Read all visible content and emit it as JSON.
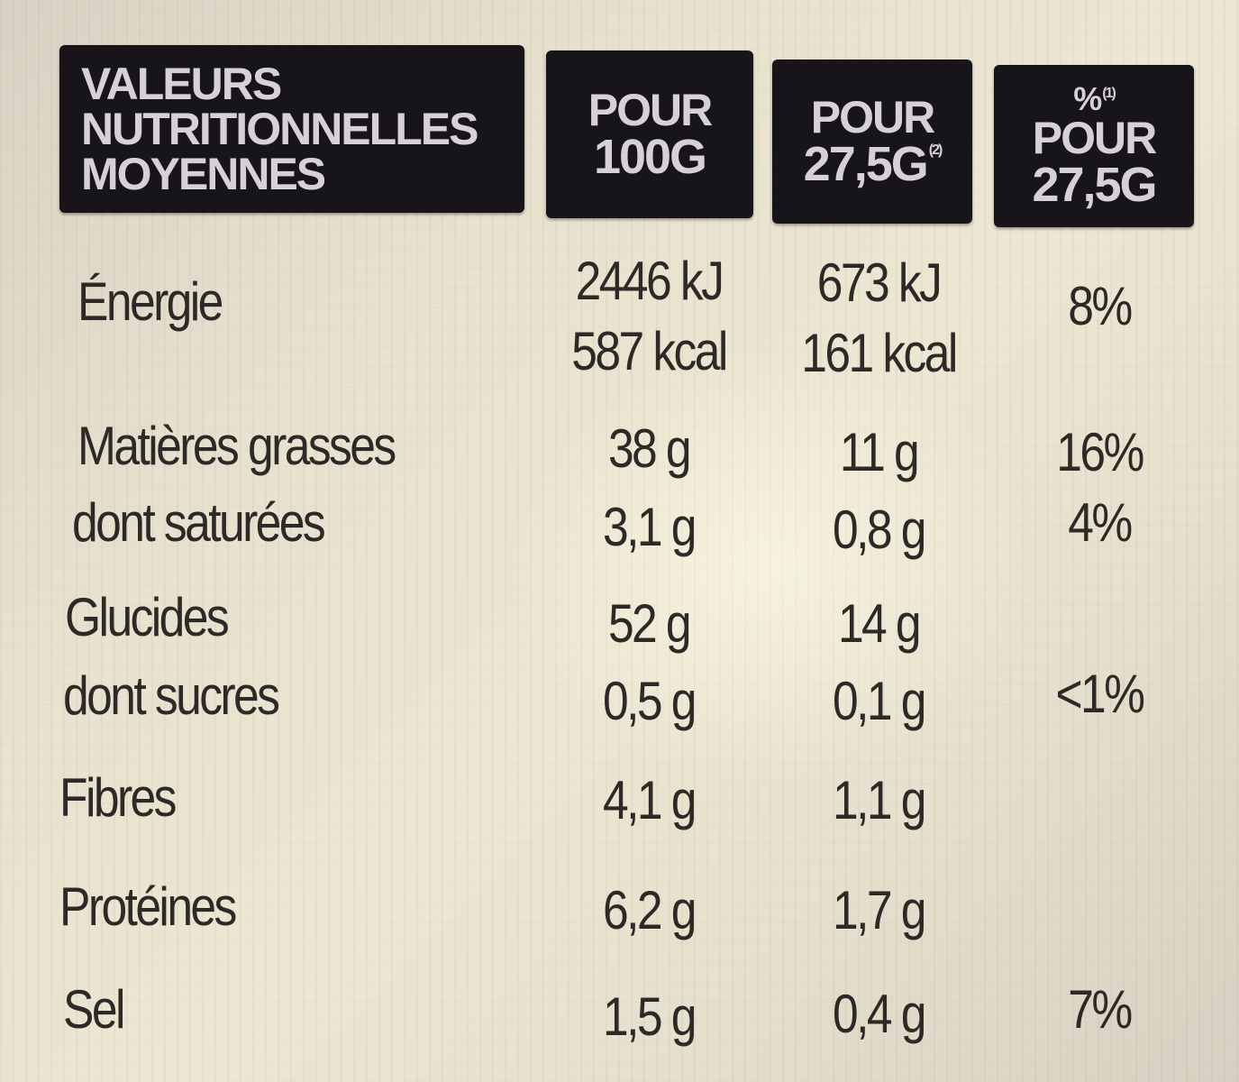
{
  "header": {
    "title_lines": [
      "VALEURS",
      "NUTRITIONNELLES",
      "MOYENNES"
    ],
    "col_100": [
      "POUR",
      "100g"
    ],
    "col_portion": [
      "POUR",
      "27,5g",
      "(2)"
    ],
    "col_pct": [
      "%",
      "(1)",
      "POUR",
      "27,5g"
    ]
  },
  "rows": [
    {
      "label": "Énergie",
      "v100": [
        "2446 kJ",
        "587 kcal"
      ],
      "vportion": [
        "673 kJ",
        "161 kcal"
      ],
      "pct": "8%"
    },
    {
      "label": "Matières grasses",
      "v100": "38 g",
      "vportion": "11 g",
      "pct": "16%"
    },
    {
      "label": "dont saturées",
      "v100": "3,1 g",
      "vportion": "0,8 g",
      "pct": "4%"
    },
    {
      "label": "Glucides",
      "v100": "52 g",
      "vportion": "14 g",
      "pct": ""
    },
    {
      "label": "dont sucres",
      "v100": "0,5 g",
      "vportion": "0,1 g",
      "pct": "<1%"
    },
    {
      "label": "Fibres",
      "v100": "4,1 g",
      "vportion": "1,1 g",
      "pct": ""
    },
    {
      "label": "Protéines",
      "v100": "6,2 g",
      "vportion": "1,7 g",
      "pct": ""
    },
    {
      "label": "Sel",
      "v100": "1,5 g",
      "vportion": "0,4 g",
      "pct": "7%"
    }
  ]
}
